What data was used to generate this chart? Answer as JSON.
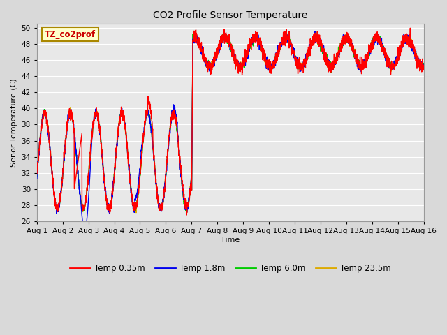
{
  "title": "CO2 Profile Sensor Temperature",
  "ylabel": "Senor Temperature (C)",
  "xlabel": "Time",
  "ylim": [
    26,
    50.5
  ],
  "xlim": [
    0,
    15
  ],
  "plot_bg_color": "#e8e8e8",
  "annotation_text": "TZ_co2prof",
  "annotation_bg": "#ffffcc",
  "annotation_border": "#aa8800",
  "legend": [
    "Temp 0.35m",
    "Temp 1.8m",
    "Temp 6.0m",
    "Temp 23.5m"
  ],
  "legend_colors": [
    "#ff0000",
    "#0000ee",
    "#00cc00",
    "#ddaa00"
  ],
  "x_tick_labels": [
    "Aug 1",
    "Aug 2",
    "Aug 3",
    "Aug 4",
    "Aug 5",
    "Aug 6",
    "Aug 7",
    "Aug 8",
    "Aug 9",
    "Aug 10",
    "Aug 11",
    "Aug 12",
    "Aug 13",
    "Aug 14",
    "Aug 15",
    "Aug 16"
  ],
  "x_tick_positions": [
    0,
    1,
    2,
    3,
    4,
    5,
    6,
    7,
    8,
    9,
    10,
    11,
    12,
    13,
    14,
    15
  ],
  "y_tick_labels": [
    26,
    28,
    30,
    32,
    34,
    36,
    38,
    40,
    42,
    44,
    46,
    48,
    50
  ],
  "figsize": [
    6.4,
    4.8
  ],
  "dpi": 100
}
